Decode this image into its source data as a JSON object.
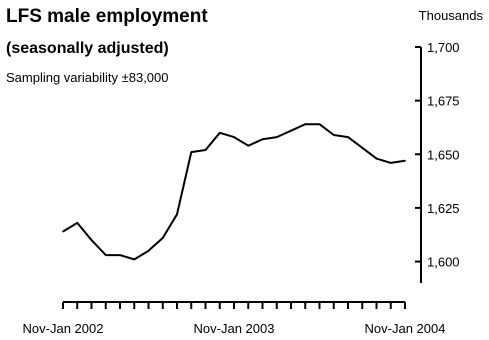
{
  "chart_data": {
    "type": "line",
    "title": "LFS male employment",
    "subtitle": "(seasonally adjusted)",
    "annotation": "Sampling variability ±83,000",
    "unit_label": "Thousands",
    "y_axis": {
      "position": "right",
      "ylim": [
        1590,
        1700
      ],
      "ticks": [
        1600,
        1625,
        1650,
        1675,
        1700
      ],
      "tick_labels": [
        "1,600",
        "1,625",
        "1,650",
        "1,675",
        "1,700"
      ]
    },
    "x_axis": {
      "tick_labels": [
        "Nov-Jan 2002",
        "Nov-Jan 2003",
        "Nov-Jan 2004"
      ],
      "tick_label_index": [
        0,
        12,
        24
      ]
    },
    "grid": false,
    "legend": "none",
    "line_color": "#000000",
    "series": [
      {
        "values": [
          1614,
          1618,
          1610,
          1603,
          1603,
          1601,
          1605,
          1611,
          1622,
          1651,
          1652,
          1660,
          1658,
          1654,
          1657,
          1658,
          1661,
          1664,
          1664,
          1659,
          1658,
          1653,
          1648,
          1646,
          1647
        ]
      }
    ]
  }
}
